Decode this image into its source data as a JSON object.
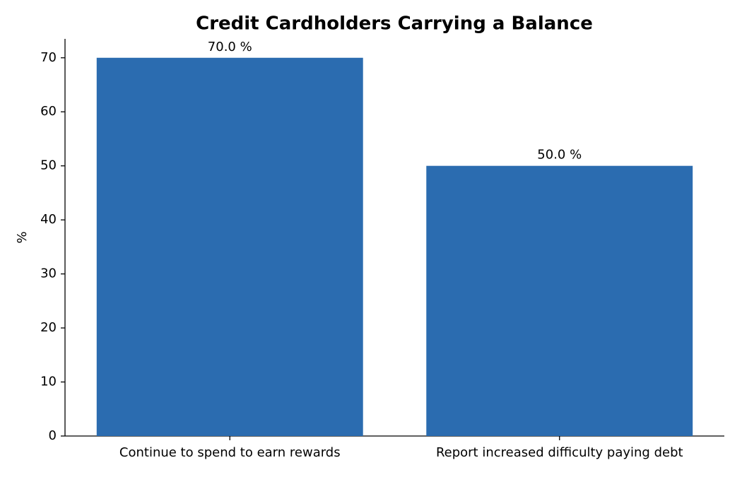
{
  "chart_data": {
    "type": "bar",
    "title": "Credit Cardholders Carrying a Balance",
    "y_label": "%",
    "categories": [
      "Continue to spend to earn rewards",
      "Report increased difficulty paying debt"
    ],
    "values": [
      70.0,
      50.0
    ],
    "value_labels": [
      "70.0 %",
      "50.0 %"
    ],
    "color": "#2b6cb0",
    "ylim": [
      0,
      73.5
    ],
    "yticks": [
      0,
      10,
      20,
      30,
      40,
      50,
      60,
      70
    ],
    "grid": false
  }
}
